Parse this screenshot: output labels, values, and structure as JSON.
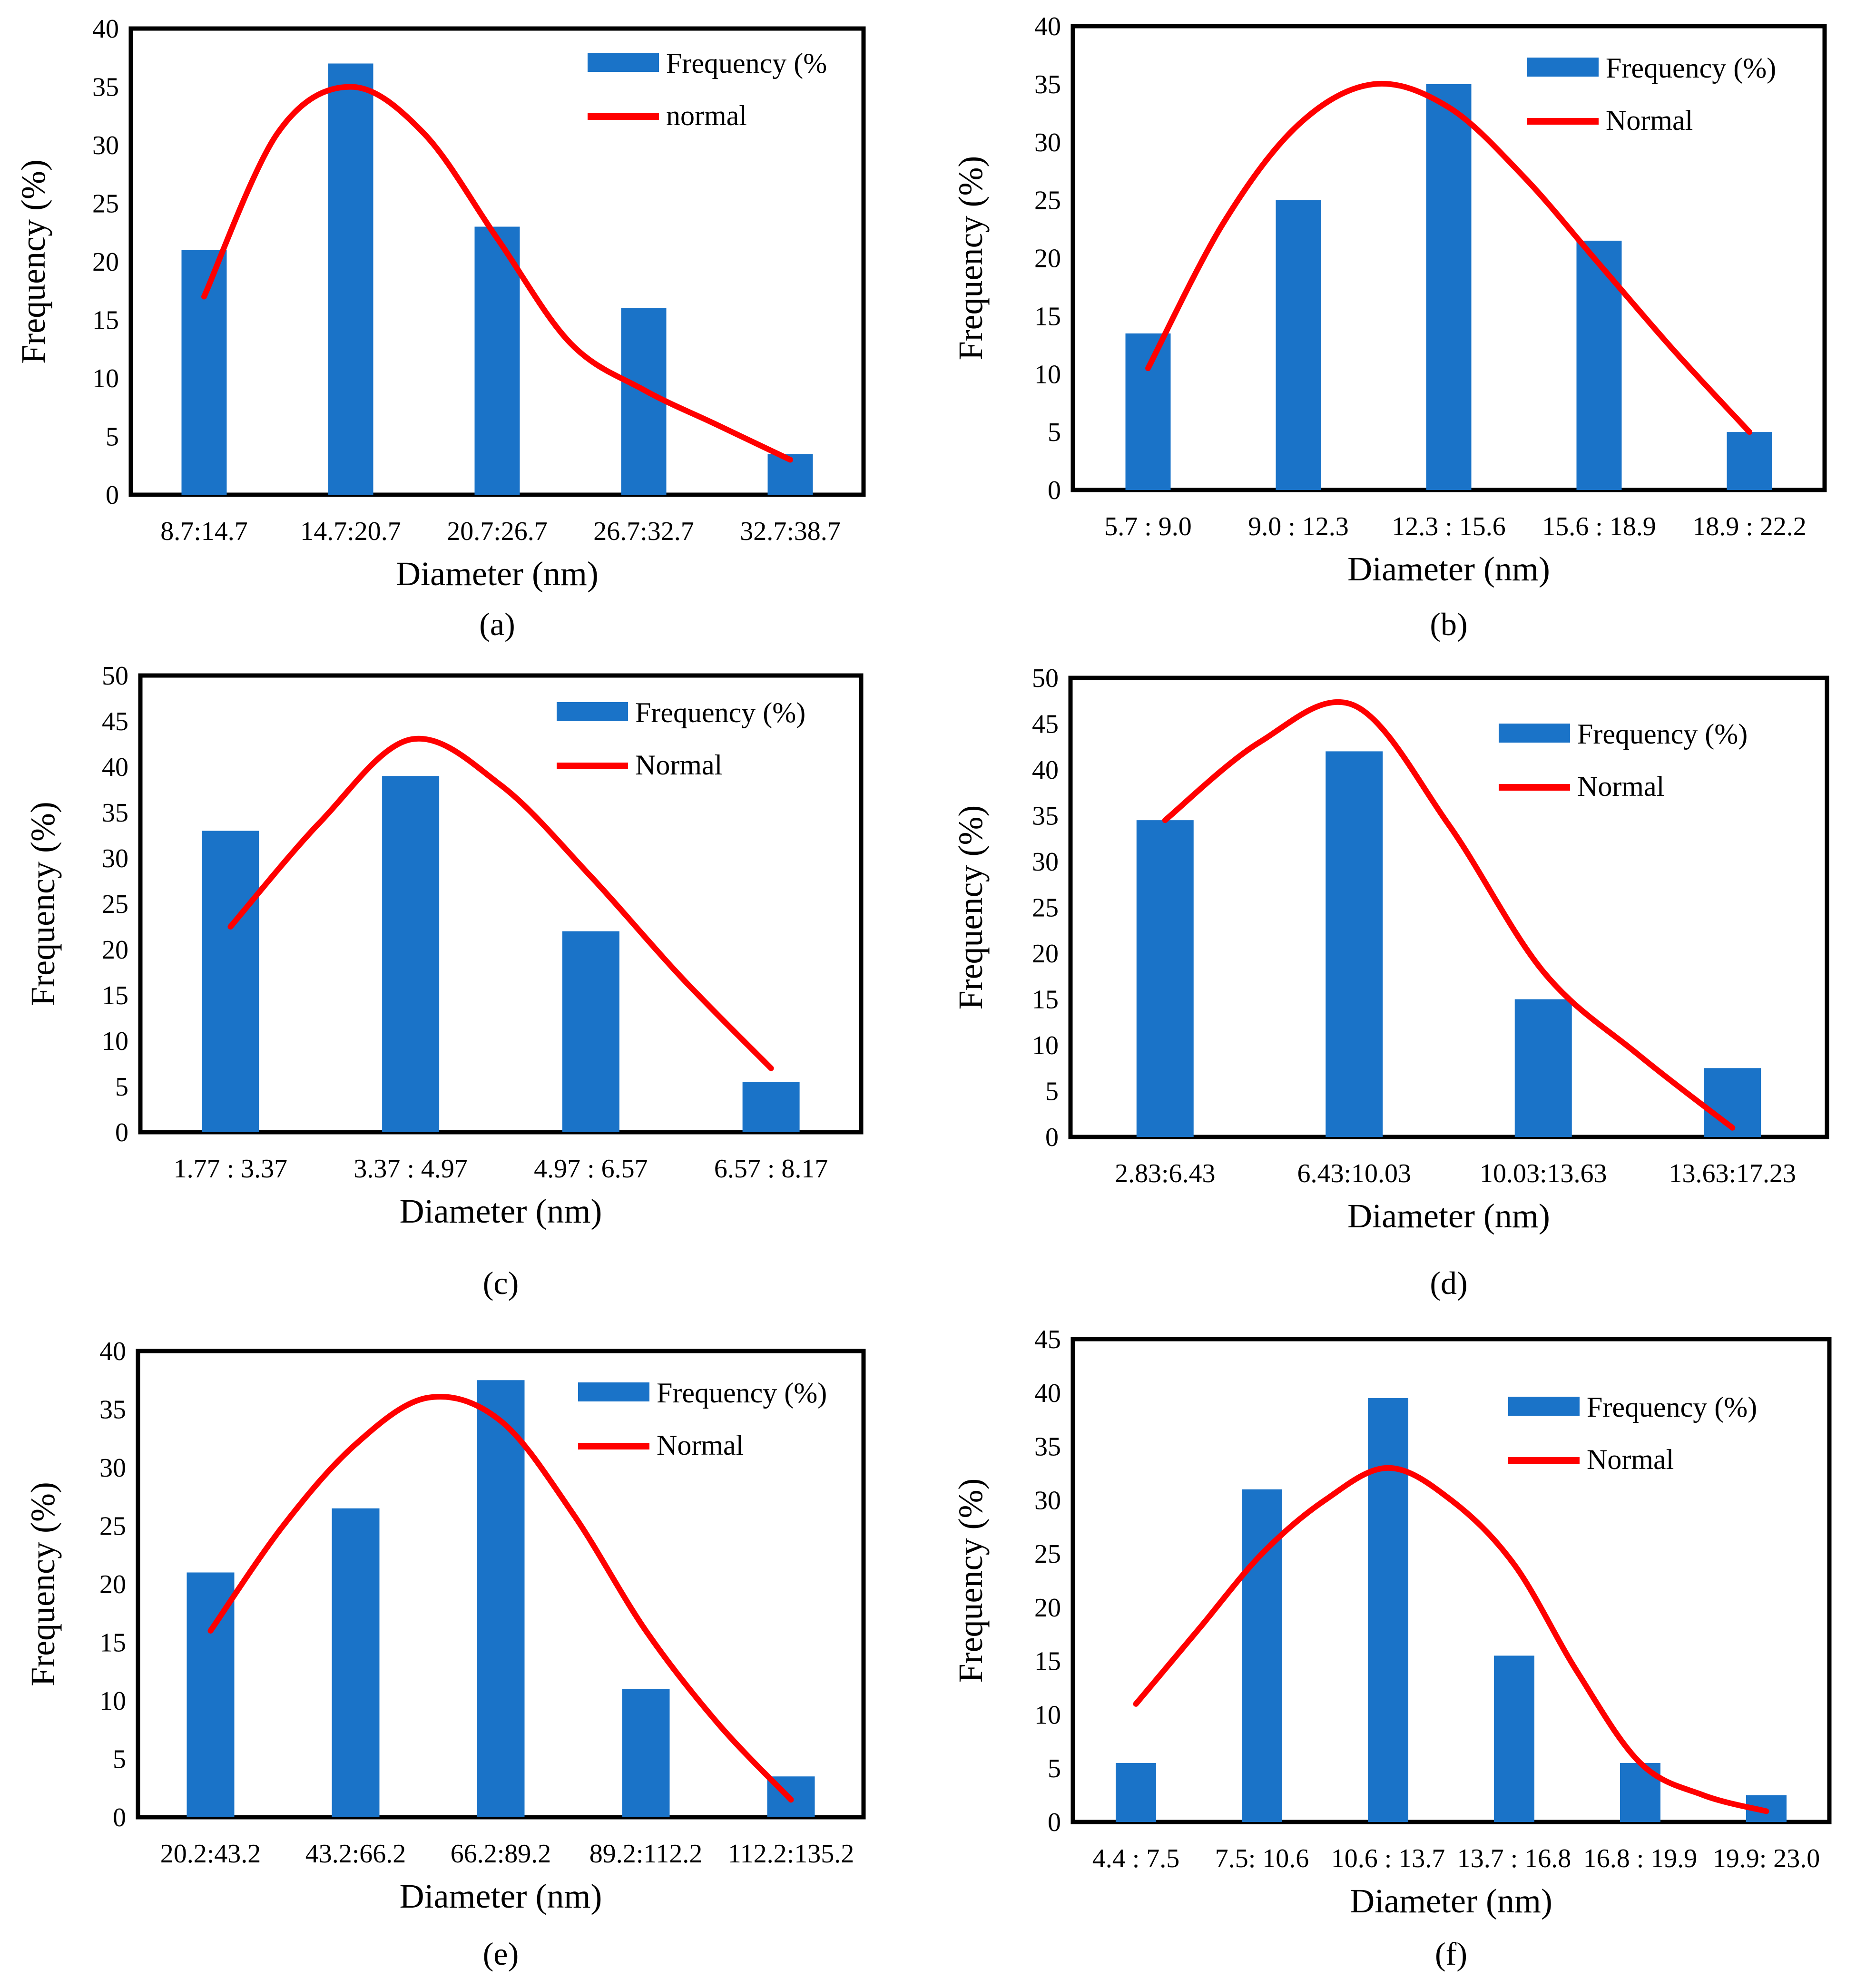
{
  "colors": {
    "bar": "#1a73c8",
    "curve": "#ff0000",
    "frame": "#000000",
    "background": "#ffffff"
  },
  "chart_data": [
    {
      "panel_label": "(a)",
      "type": "bar",
      "categories": [
        "8.7:14.7",
        "14.7:20.7",
        "20.7:26.7",
        "26.7:32.7",
        "32.7:38.7"
      ],
      "ylim": [
        0,
        40
      ],
      "yticks": [
        "0",
        "5",
        "10",
        "15",
        "20",
        "25",
        "30",
        "35",
        "40"
      ],
      "xlabel": "Diameter (nm)",
      "ylabel": "Frequency (%)",
      "legend": [
        "Frequency (%",
        "normal"
      ],
      "series": [
        {
          "name": "Frequency (%",
          "type": "bar",
          "values": [
            21,
            37,
            23,
            16,
            3.5
          ]
        },
        {
          "name": "normal",
          "type": "line",
          "x": [
            0,
            0.5,
            1,
            1.5,
            2,
            2.5,
            3,
            3.5,
            4
          ],
          "values": [
            17,
            31,
            35,
            31,
            22,
            13,
            9,
            6,
            3
          ]
        }
      ]
    },
    {
      "panel_label": "(b)",
      "type": "bar",
      "categories": [
        "5.7 : 9.0",
        "9.0 : 12.3",
        "12.3 : 15.6",
        "15.6 : 18.9",
        "18.9 : 22.2"
      ],
      "ylim": [
        0,
        40
      ],
      "yticks": [
        "0",
        "5",
        "10",
        "15",
        "20",
        "25",
        "30",
        "35",
        "40"
      ],
      "xlabel": "Diameter (nm)",
      "ylabel": "Frequency (%)",
      "legend": [
        "Frequency (%)",
        "Normal"
      ],
      "series": [
        {
          "name": "Frequency (%)",
          "type": "bar",
          "values": [
            13.5,
            25,
            35,
            21.5,
            5
          ]
        },
        {
          "name": "Normal",
          "type": "line",
          "x": [
            0,
            0.5,
            1,
            1.5,
            2,
            2.5,
            3,
            3.5,
            4
          ],
          "values": [
            10.5,
            23,
            31.5,
            35,
            33,
            27,
            19.5,
            12,
            5
          ]
        }
      ]
    },
    {
      "panel_label": "(c)",
      "type": "bar",
      "categories": [
        "1.77 : 3.37",
        "3.37 : 4.97",
        "4.97 : 6.57",
        "6.57 : 8.17"
      ],
      "ylim": [
        0,
        50
      ],
      "yticks": [
        "0",
        "5",
        "10",
        "15",
        "20",
        "25",
        "30",
        "35",
        "40",
        "45",
        "50"
      ],
      "xlabel": "Diameter (nm)",
      "ylabel": "Frequency (%)",
      "legend": [
        "Frequency (%)",
        "Normal"
      ],
      "series": [
        {
          "name": "Frequency (%)",
          "type": "bar",
          "values": [
            33,
            39,
            22,
            5.5
          ]
        },
        {
          "name": "Normal",
          "type": "line",
          "x": [
            0,
            0.5,
            1,
            1.5,
            2,
            2.5,
            3
          ],
          "values": [
            22.5,
            34,
            43,
            38,
            28,
            17,
            7
          ]
        }
      ]
    },
    {
      "panel_label": "(d)",
      "type": "bar",
      "categories": [
        "2.83:6.43",
        "6.43:10.03",
        "10.03:13.63",
        "13.63:17.23"
      ],
      "ylim": [
        0,
        50
      ],
      "yticks": [
        "0",
        "5",
        "10",
        "15",
        "20",
        "25",
        "30",
        "35",
        "40",
        "45",
        "50"
      ],
      "xlabel": "Diameter (nm)",
      "ylabel": "Frequency (%)",
      "legend": [
        "Frequency (%)",
        "Normal"
      ],
      "series": [
        {
          "name": "Frequency (%)",
          "type": "bar",
          "values": [
            34.5,
            42,
            15,
            7.5
          ]
        },
        {
          "name": "Normal",
          "type": "line",
          "x": [
            0,
            0.5,
            1,
            1.5,
            2,
            2.5,
            3
          ],
          "values": [
            34.5,
            43,
            47,
            34,
            18,
            9,
            1
          ]
        }
      ]
    },
    {
      "panel_label": "(e)",
      "type": "bar",
      "categories": [
        "20.2:43.2",
        "43.2:66.2",
        "66.2:89.2",
        "89.2:112.2",
        "112.2:135.2"
      ],
      "ylim": [
        0,
        40
      ],
      "yticks": [
        "0",
        "5",
        "10",
        "15",
        "20",
        "25",
        "30",
        "35",
        "40"
      ],
      "xlabel": "Diameter (nm)",
      "ylabel": "Frequency (%)",
      "legend": [
        "Frequency (%)",
        "Normal"
      ],
      "series": [
        {
          "name": "Frequency (%)",
          "type": "bar",
          "values": [
            21,
            26.5,
            37.5,
            11,
            3.5
          ]
        },
        {
          "name": "Normal",
          "type": "line",
          "x": [
            0,
            0.5,
            1,
            1.5,
            2,
            2.5,
            3,
            3.5,
            4
          ],
          "values": [
            16,
            25,
            32,
            36,
            34,
            26,
            16,
            8,
            1.5
          ]
        }
      ]
    },
    {
      "panel_label": "(f)",
      "type": "bar",
      "categories": [
        "4.4 : 7.5",
        "7.5: 10.6",
        "10.6 : 13.7",
        "13.7 : 16.8",
        "16.8 : 19.9",
        "19.9: 23.0"
      ],
      "ylim": [
        0,
        45
      ],
      "yticks": [
        "0",
        "5",
        "10",
        "15",
        "20",
        "25",
        "30",
        "35",
        "40",
        "45"
      ],
      "xlabel": "Diameter (nm)",
      "ylabel": "Frequency (%)",
      "legend": [
        "Frequency (%)",
        "Normal"
      ],
      "series": [
        {
          "name": "Frequency (%)",
          "type": "bar",
          "values": [
            5.5,
            31,
            39.5,
            15.5,
            5.5,
            2.5
          ]
        },
        {
          "name": "Normal",
          "type": "line",
          "x": [
            0,
            0.5,
            1,
            1.5,
            2,
            2.5,
            3,
            3.5,
            4,
            4.5,
            5
          ],
          "values": [
            11,
            18,
            25,
            30,
            33,
            30,
            24,
            14,
            5.5,
            2.5,
            1
          ]
        }
      ]
    }
  ]
}
